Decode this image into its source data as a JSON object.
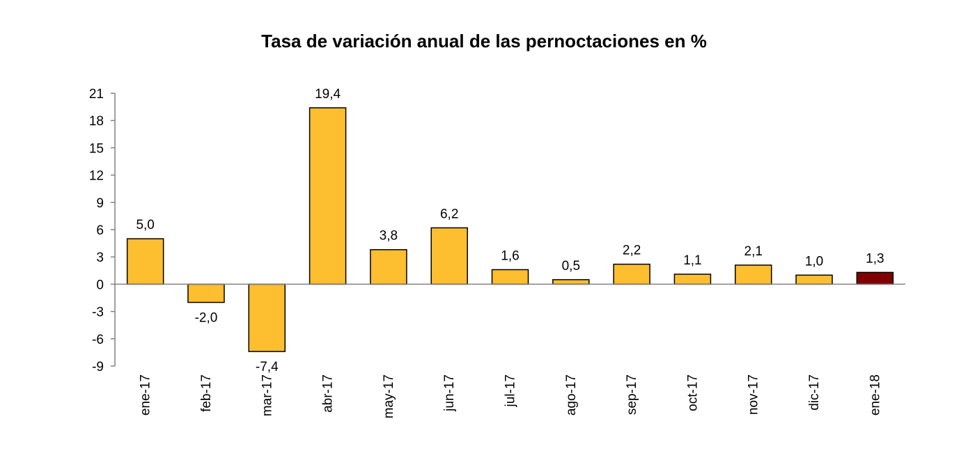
{
  "chart_data": {
    "type": "bar",
    "title": "Tasa de variación anual de las pernoctaciones en %",
    "xlabel": "",
    "ylabel": "",
    "categories": [
      "ene-17",
      "feb-17",
      "mar-17",
      "abr-17",
      "may-17",
      "jun-17",
      "jul-17",
      "ago-17",
      "sep-17",
      "oct-17",
      "nov-17",
      "dic-17",
      "ene-18"
    ],
    "values": [
      5.0,
      -2.0,
      -7.4,
      19.4,
      3.8,
      6.2,
      1.6,
      0.5,
      2.2,
      1.1,
      2.1,
      1.0,
      1.3
    ],
    "value_labels": [
      "5,0",
      "-2,0",
      "-7,4",
      "19,4",
      "3,8",
      "6,2",
      "1,6",
      "0,5",
      "2,2",
      "1,1",
      "2,1",
      "1,0",
      "1,3"
    ],
    "ylim": [
      -9,
      21
    ],
    "yticks": [
      21,
      18,
      15,
      12,
      9,
      6,
      3,
      0,
      -3,
      -6,
      -9
    ],
    "grid": false,
    "legend": "none",
    "colors": {
      "bar": "#FDBE2F",
      "highlight_bar": "#800000",
      "stroke": "#000000",
      "axis": "#808080"
    },
    "highlight_index": 12
  }
}
